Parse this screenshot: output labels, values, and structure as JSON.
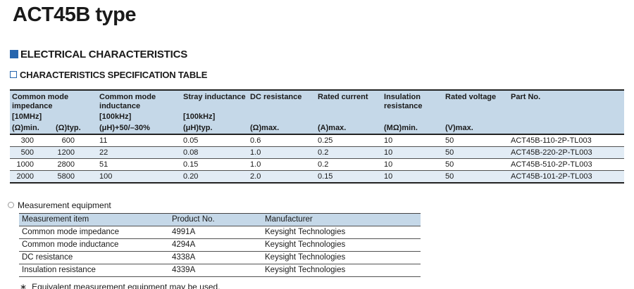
{
  "page": {
    "title": "ACT45B type",
    "section_heading": "ELECTRICAL CHARACTERISTICS",
    "subsection_heading": "CHARACTERISTICS SPECIFICATION TABLE"
  },
  "colors": {
    "accent_blue": "#2565ae",
    "table_header_bg": "#c5d8e8",
    "alt_row_bg": "#e2ecf5"
  },
  "spec_table": {
    "column_groups": [
      {
        "title": "Common mode impedance",
        "freq": "[10MHz]",
        "units": [
          "(Ω)min.",
          "(Ω)typ."
        ]
      },
      {
        "title": "Common mode inductance",
        "freq": "[100kHz]",
        "units": [
          "(μH)+50/–30%"
        ]
      },
      {
        "title": "Stray inductance",
        "freq": "[100kHz]",
        "units": [
          "(μH)typ."
        ]
      },
      {
        "title": "DC resistance",
        "freq": "",
        "units": [
          "(Ω)max."
        ]
      },
      {
        "title": "Rated current",
        "freq": "",
        "units": [
          "(A)max."
        ]
      },
      {
        "title": "Insulation resistance",
        "freq": "",
        "units": [
          "(MΩ)min."
        ]
      },
      {
        "title": "Rated voltage",
        "freq": "",
        "units": [
          "(V)max."
        ]
      },
      {
        "title": "Part No.",
        "freq": "",
        "units": [
          ""
        ]
      }
    ],
    "rows": [
      [
        "300",
        "600",
        "11",
        "0.05",
        "0.6",
        "0.25",
        "10",
        "50",
        "ACT45B-110-2P-TL003"
      ],
      [
        "500",
        "1200",
        "22",
        "0.08",
        "1.0",
        "0.2",
        "10",
        "50",
        "ACT45B-220-2P-TL003"
      ],
      [
        "1000",
        "2800",
        "51",
        "0.15",
        "1.0",
        "0.2",
        "10",
        "50",
        "ACT45B-510-2P-TL003"
      ],
      [
        "2000",
        "5800",
        "100",
        "0.20",
        "2.0",
        "0.15",
        "10",
        "50",
        "ACT45B-101-2P-TL003"
      ]
    ]
  },
  "measurement": {
    "bullet_label": "Measurement equipment",
    "headers": [
      "Measurement item",
      "Product No.",
      "Manufacturer"
    ],
    "rows": [
      [
        "Common mode impedance",
        "4991A",
        "Keysight Technologies"
      ],
      [
        "Common mode inductance",
        "4294A",
        "Keysight Technologies"
      ],
      [
        "DC resistance",
        "4338A",
        "Keysight Technologies"
      ],
      [
        "Insulation resistance",
        "4339A",
        "Keysight Technologies"
      ]
    ],
    "footnote_marker": "∗",
    "footnote": "Equivalent measurement equipment may be used."
  }
}
